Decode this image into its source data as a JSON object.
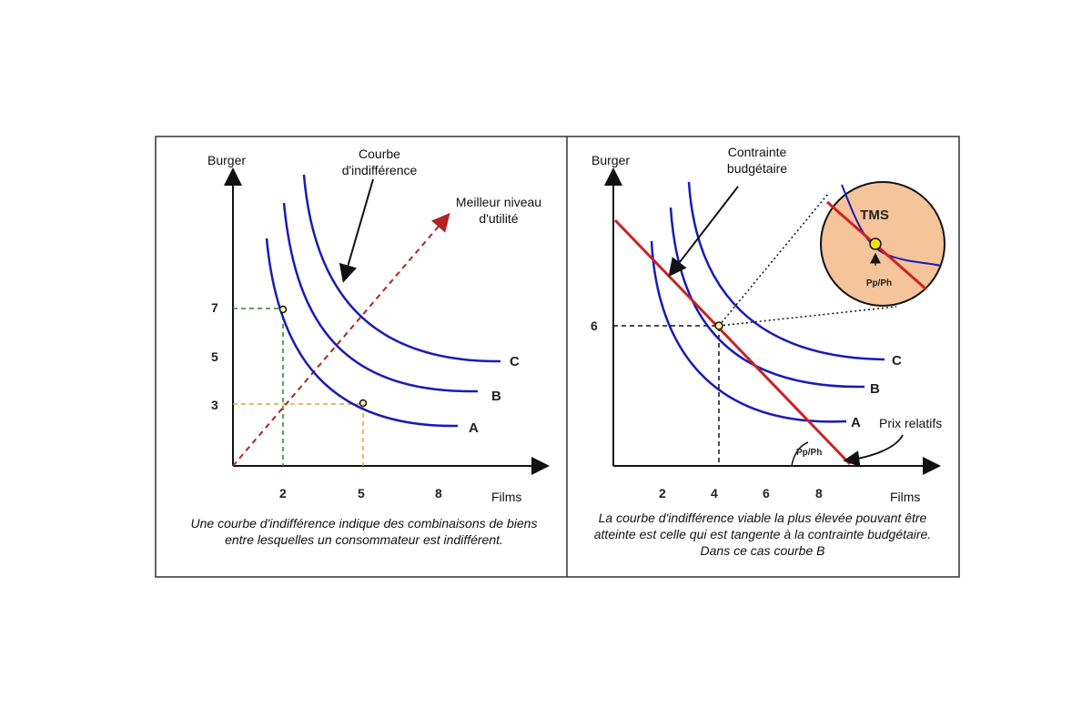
{
  "chart_data": [
    {
      "type": "line",
      "xlabel": "Films",
      "ylabel": "Burger",
      "x_ticks": [
        "2",
        "5",
        "8"
      ],
      "y_ticks": [
        "7",
        "5",
        "3"
      ],
      "series": [
        {
          "name": "A"
        },
        {
          "name": "B"
        },
        {
          "name": "C"
        }
      ],
      "points": [
        {
          "x": 2,
          "y": 7
        },
        {
          "x": 5,
          "y": 3
        }
      ],
      "annotations": {
        "curve_note": "Courbe\nd'indifférence",
        "utility_note": "Meilleur niveau\nd'utilité"
      },
      "caption": "Une courbe d'indifférence indique des combinaisons de biens\nentre lesquelles un consommateur est indifférent.",
      "colors": {
        "curve": "#1a1ab8",
        "utility_arrow": "#b22222",
        "guide_green": "#2e7d32",
        "guide_orange": "#e6a23c"
      }
    },
    {
      "type": "line",
      "xlabel": "Films",
      "ylabel": "Burger",
      "x_ticks": [
        "2",
        "4",
        "6",
        "8"
      ],
      "y_ticks": [
        "6"
      ],
      "series": [
        {
          "name": "A"
        },
        {
          "name": "B"
        },
        {
          "name": "C"
        }
      ],
      "budget_line": {
        "intercept_y": 10,
        "slope": -1
      },
      "tangency": {
        "x": 4,
        "y": 6
      },
      "annotations": {
        "budget_note": "Contrainte\nbudgétaire",
        "prix_note": "Prix relatifs",
        "slope_label": "Pp/Ph",
        "zoom_tms": "TMS",
        "zoom_ratio": "Pp/Ph"
      },
      "caption": "La courbe d'indifférence viable la plus élevée pouvant être\natteinte est celle qui est tangente à la contrainte budgétaire.\nDans ce cas courbe B",
      "colors": {
        "curve": "#1a1ab8",
        "budget": "#cc2222",
        "zoom_fill": "#f5c49a",
        "point": "#f0e020"
      }
    }
  ]
}
